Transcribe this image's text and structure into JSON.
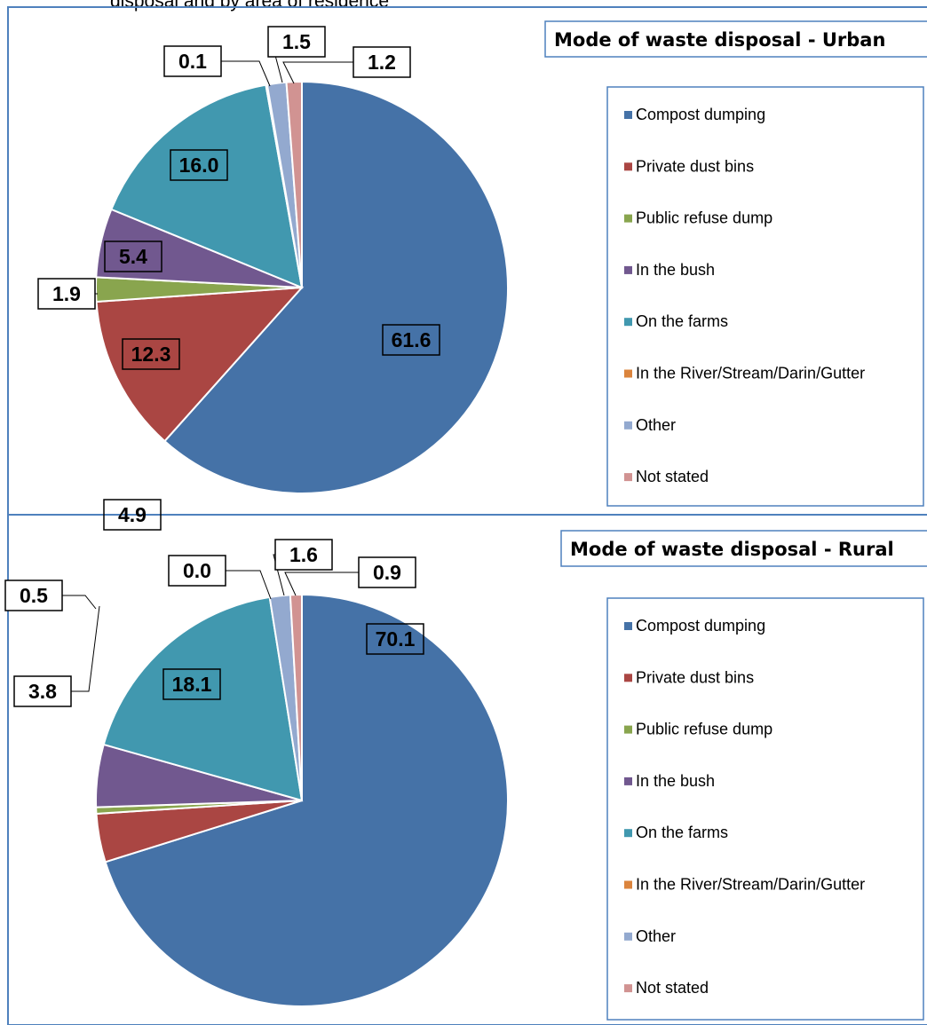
{
  "caption": "disposal and by area of residence",
  "colors": {
    "Compost dumping": "#4572a7",
    "Private dust bins": "#aa4643",
    "Public refuse dump": "#89a54e",
    "In the bush": "#71588f",
    "On the farms": "#4198af",
    "In the River/Stream/Darin/Gutter": "#db843d",
    "Other": "#93a9cf",
    "Not stated": "#d19392"
  },
  "chart_data": [
    {
      "type": "pie",
      "title": "Mode of waste disposal - Urban",
      "categories": [
        "Compost dumping",
        "Private dust bins",
        "Public refuse dump",
        "In the bush",
        "On the farms",
        "In the River/Stream/Darin/Gutter",
        "Other",
        "Not stated"
      ],
      "values": [
        61.6,
        12.3,
        1.9,
        5.4,
        16.0,
        0.1,
        1.5,
        1.2
      ],
      "data_labels": [
        "61.6",
        "12.3",
        "1.9",
        "5.4",
        "16.0",
        "0.1",
        "1.5",
        "1.2"
      ],
      "legend": "right"
    },
    {
      "type": "pie",
      "title": "Mode of waste disposal - Rural",
      "categories": [
        "Compost dumping",
        "Private dust bins",
        "Public refuse dump",
        "In the bush",
        "On the farms",
        "In the River/Stream/Darin/Gutter",
        "Other",
        "Not stated"
      ],
      "values": [
        70.1,
        3.8,
        0.5,
        4.9,
        18.1,
        0.0,
        1.6,
        0.9
      ],
      "data_labels": [
        "70.1",
        "3.8",
        "0.5",
        "4.9",
        "18.1",
        "0.0",
        "1.6",
        "0.9"
      ],
      "legend": "right"
    }
  ]
}
